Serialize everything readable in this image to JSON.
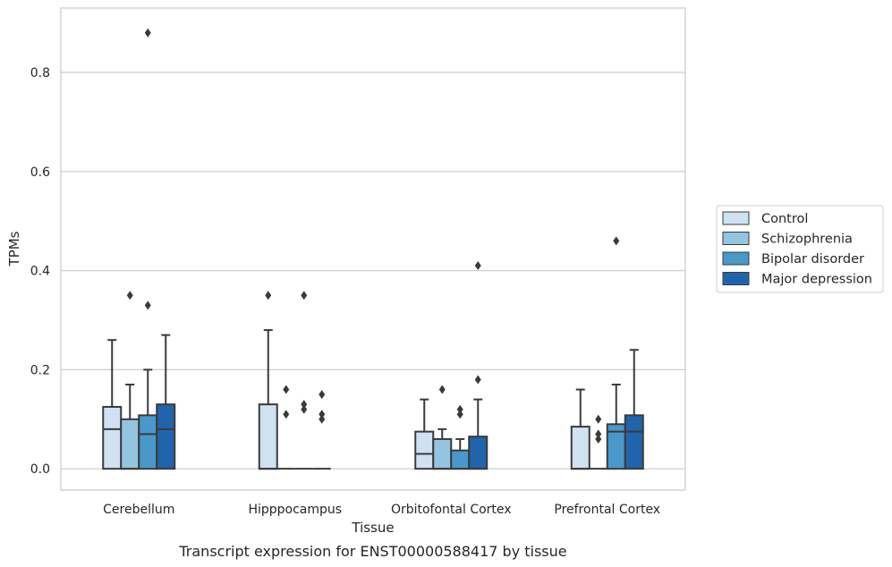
{
  "caption": "Transcript expression for ENST00000588417 by tissue",
  "chart_data": {
    "type": "box",
    "xlabel": "Tissue",
    "ylabel": "TPMs",
    "ylim": [
      -0.043,
      0.93
    ],
    "yticks": [
      0.0,
      0.2,
      0.4,
      0.6,
      0.8
    ],
    "ytick_labels": [
      "0.0",
      "0.2",
      "0.4",
      "0.6",
      "0.8"
    ],
    "grid": "horizontal",
    "legend_position": "center-right",
    "categories": [
      "Cerebellum",
      "Hipppocampus",
      "Orbitofontal Cortex",
      "Prefrontal Cortex"
    ],
    "series": [
      {
        "name": "Control",
        "color": "#d0e1f2",
        "boxes": [
          {
            "whislo": 0.0,
            "q1": 0.0,
            "med": 0.08,
            "q3": 0.125,
            "whishi": 0.26,
            "fliers": []
          },
          {
            "whislo": 0.0,
            "q1": 0.0,
            "med": 0.0,
            "q3": 0.13,
            "whishi": 0.28,
            "fliers": [
              0.35
            ]
          },
          {
            "whislo": 0.0,
            "q1": 0.0,
            "med": 0.03,
            "q3": 0.075,
            "whishi": 0.14,
            "fliers": []
          },
          {
            "whislo": 0.0,
            "q1": 0.0,
            "med": 0.0,
            "q3": 0.085,
            "whishi": 0.16,
            "fliers": []
          }
        ]
      },
      {
        "name": "Schizophrenia",
        "color": "#94c4df",
        "boxes": [
          {
            "whislo": 0.0,
            "q1": 0.0,
            "med": 0.0,
            "q3": 0.1,
            "whishi": 0.17,
            "fliers": [
              0.35
            ]
          },
          {
            "whislo": 0.0,
            "q1": 0.0,
            "med": 0.0,
            "q3": 0.0,
            "whishi": 0.0,
            "fliers": [
              0.11,
              0.16
            ]
          },
          {
            "whislo": 0.0,
            "q1": 0.0,
            "med": 0.0,
            "q3": 0.06,
            "whishi": 0.08,
            "fliers": [
              0.16
            ]
          },
          {
            "whislo": 0.0,
            "q1": 0.0,
            "med": 0.0,
            "q3": 0.0,
            "whishi": 0.0,
            "fliers": [
              0.06,
              0.07,
              0.1
            ]
          }
        ]
      },
      {
        "name": "Bipolar disorder",
        "color": "#4a98c9",
        "boxes": [
          {
            "whislo": 0.0,
            "q1": 0.0,
            "med": 0.07,
            "q3": 0.108,
            "whishi": 0.2,
            "fliers": [
              0.33,
              0.88
            ]
          },
          {
            "whislo": 0.0,
            "q1": 0.0,
            "med": 0.0,
            "q3": 0.0,
            "whishi": 0.0,
            "fliers": [
              0.12,
              0.13,
              0.35
            ]
          },
          {
            "whislo": 0.0,
            "q1": 0.0,
            "med": 0.0,
            "q3": 0.037,
            "whishi": 0.06,
            "fliers": [
              0.11,
              0.12
            ]
          },
          {
            "whislo": 0.0,
            "q1": 0.0,
            "med": 0.075,
            "q3": 0.09,
            "whishi": 0.17,
            "fliers": [
              0.46
            ]
          }
        ]
      },
      {
        "name": "Major depression",
        "color": "#2164ab",
        "boxes": [
          {
            "whislo": 0.0,
            "q1": 0.0,
            "med": 0.08,
            "q3": 0.13,
            "whishi": 0.27,
            "fliers": []
          },
          {
            "whislo": 0.0,
            "q1": 0.0,
            "med": 0.0,
            "q3": 0.0,
            "whishi": 0.0,
            "fliers": [
              0.1,
              0.11,
              0.15
            ]
          },
          {
            "whislo": 0.0,
            "q1": 0.0,
            "med": 0.0,
            "q3": 0.065,
            "whishi": 0.14,
            "fliers": [
              0.18,
              0.41
            ]
          },
          {
            "whislo": 0.0,
            "q1": 0.0,
            "med": 0.075,
            "q3": 0.108,
            "whishi": 0.24,
            "fliers": []
          }
        ]
      }
    ]
  }
}
